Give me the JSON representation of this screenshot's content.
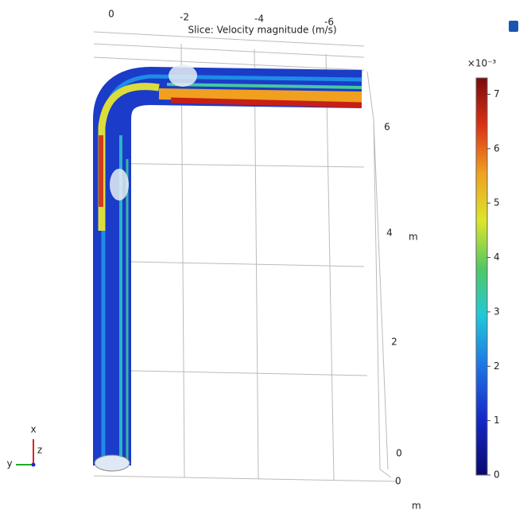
{
  "plot": {
    "title": "Slice: Velocity magnitude (m/s)",
    "top_axis_labels": [
      "0",
      "-2",
      "-4",
      "-6"
    ],
    "right_axis_labels": [
      "6",
      "4",
      "2",
      "0"
    ],
    "right_axis_unit": "m",
    "bottom_axis_label": "0",
    "bottom_axis_unit": "m",
    "triad": [
      "x",
      "y",
      "z"
    ]
  },
  "colorbar": {
    "multiplier": "×10⁻³",
    "range": [
      0,
      7.3
    ],
    "ticks": [
      0,
      1,
      2,
      3,
      4,
      5,
      6,
      7
    ]
  }
}
